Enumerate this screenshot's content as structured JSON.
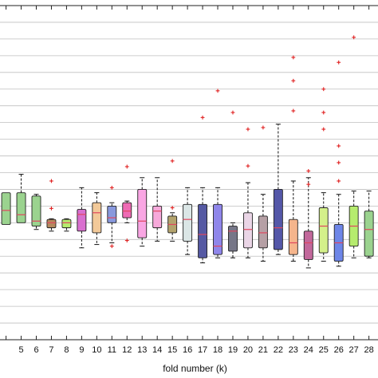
{
  "chart_data": {
    "type": "box",
    "xlabel": "fold number (k)",
    "ylabel": "",
    "title": "",
    "x_range": [
      3.6,
      28.6
    ],
    "ylim": [
      0,
      100
    ],
    "grid": "horizontal",
    "categories": [
      "5",
      "6",
      "7",
      "8",
      "9",
      "10",
      "11",
      "12",
      "13",
      "14",
      "15",
      "16",
      "17",
      "18",
      "19",
      "20",
      "21",
      "22",
      "23",
      "24",
      "25",
      "26",
      "27",
      "28"
    ],
    "boxes": [
      {
        "k": 4,
        "q1": 34.5,
        "median": 38.7,
        "q3": 44.0,
        "low": null,
        "high": null,
        "outliers": [],
        "color": "#9bd38f"
      },
      {
        "k": 5,
        "q1": 35.0,
        "median": 37.4,
        "q3": 44.0,
        "low": null,
        "high": 49.5,
        "outliers": [],
        "color": "#9bd38f"
      },
      {
        "k": 6,
        "q1": 34.0,
        "median": 35.5,
        "q3": 43.0,
        "low": 33.0,
        "high": 43.5,
        "outliers": [],
        "color": "#9bd38f"
      },
      {
        "k": 7,
        "q1": 33.5,
        "median": 35.0,
        "q3": 36.0,
        "low": 32.5,
        "high": 36.2,
        "outliers": [
          47.5,
          39.3
        ],
        "color": "#b58a5f"
      },
      {
        "k": 8,
        "q1": 33.5,
        "median": 35.0,
        "q3": 36.0,
        "low": 32.5,
        "high": 36.2,
        "outliers": [],
        "color": "#b6ec6e"
      },
      {
        "k": 9,
        "q1": 32.5,
        "median": 37.5,
        "q3": 39.0,
        "low": 27.5,
        "high": 45.5,
        "outliers": [],
        "color": "#d96fcf"
      },
      {
        "k": 10,
        "q1": 32.0,
        "median": 38.0,
        "q3": 41.0,
        "low": 28.5,
        "high": 44.0,
        "outliers": [],
        "color": "#f2c999"
      },
      {
        "k": 11,
        "q1": 35.0,
        "median": 36.5,
        "q3": 40.0,
        "low": 29.0,
        "high": 41.0,
        "outliers": [
          28.0,
          45.5
        ],
        "color": "#8898dd"
      },
      {
        "k": 12,
        "q1": 36.5,
        "median": 38.5,
        "q3": 41.0,
        "low": 35.0,
        "high": 41.5,
        "outliers": [
          29.7,
          51.8
        ],
        "color": "#ee6bb4"
      },
      {
        "k": 13,
        "q1": 30.5,
        "median": 35.5,
        "q3": 45.0,
        "low": 28.0,
        "high": 48.5,
        "outliers": [],
        "color": "#f9a6e3"
      },
      {
        "k": 14,
        "q1": 33.5,
        "median": 38.5,
        "q3": 40.0,
        "low": 29.5,
        "high": 48.5,
        "outliers": [],
        "color": "#f7a9da"
      },
      {
        "k": 15,
        "q1": 32.0,
        "median": 34.5,
        "q3": 37.0,
        "low": 29.5,
        "high": 38.0,
        "outliers": [
          39.5,
          53.5
        ],
        "color": "#b3a36d"
      },
      {
        "k": 16,
        "q1": 29.5,
        "median": 36.0,
        "q3": 40.5,
        "low": 25.5,
        "high": 45.5,
        "outliers": [],
        "color": "#dbe6e6"
      },
      {
        "k": 17,
        "q1": 24.5,
        "median": 31.5,
        "q3": 40.5,
        "low": 23.0,
        "high": 45.5,
        "outliers": [
          66.5
        ],
        "color": "#5559a3"
      },
      {
        "k": 18,
        "q1": 25.5,
        "median": 28.0,
        "q3": 40.5,
        "low": 24.5,
        "high": 45.5,
        "outliers": [
          74.5
        ],
        "color": "#8f86ea"
      },
      {
        "k": 19,
        "q1": 26.5,
        "median": 32.5,
        "q3": 34.0,
        "low": 24.5,
        "high": 35.0,
        "outliers": [
          68.0
        ],
        "color": "#777788"
      },
      {
        "k": 20,
        "q1": 27.5,
        "median": 33.0,
        "q3": 38.0,
        "low": 24.5,
        "high": 47.0,
        "outliers": [
          63.0,
          52.0
        ],
        "color": "#ead5e6"
      },
      {
        "k": 21,
        "q1": 27.5,
        "median": 32.0,
        "q3": 37.0,
        "low": 23.5,
        "high": 43.5,
        "outliers": [
          63.5
        ],
        "color": "#b6a0a5"
      },
      {
        "k": 22,
        "q1": 27.0,
        "median": 33.5,
        "q3": 45.0,
        "low": 25.5,
        "high": 64.5,
        "outliers": [],
        "color": "#5457a8"
      },
      {
        "k": 23,
        "q1": 25.5,
        "median": 29.0,
        "q3": 36.0,
        "low": 23.5,
        "high": 47.5,
        "outliers": [
          84.5,
          77.5,
          68.5
        ],
        "color": "#f5b58c"
      },
      {
        "k": 24,
        "q1": 24.0,
        "median": 29.0,
        "q3": 32.5,
        "low": 21.5,
        "high": 48.5,
        "outliers": [
          50.5,
          46.5
        ],
        "color": "#c2689b"
      },
      {
        "k": 25,
        "q1": 26.0,
        "median": 34.0,
        "q3": 39.5,
        "low": 23.5,
        "high": 44.0,
        "outliers": [
          75.0,
          68.0,
          63.0
        ],
        "color": "#d4f08a"
      },
      {
        "k": 26,
        "q1": 23.5,
        "median": 29.0,
        "q3": 34.5,
        "low": 22.0,
        "high": 43.5,
        "outliers": [
          83.0,
          58.0,
          53.0,
          47.5
        ],
        "color": "#6e86e8"
      },
      {
        "k": 27,
        "q1": 28.0,
        "median": 34.0,
        "q3": 40.0,
        "low": 24.5,
        "high": 44.5,
        "outliers": [
          90.5
        ],
        "color": "#b6ec6e"
      },
      {
        "k": 28,
        "q1": 25.0,
        "median": 33.0,
        "q3": 38.5,
        "low": 24.5,
        "high": 44.5,
        "outliers": [],
        "color": "#9bd38f"
      }
    ],
    "styles": {
      "box_edge": "#222222",
      "median": "#e0475f",
      "whisker": "#111111",
      "outlier": "#e02020",
      "grid": "#bfbfbf",
      "axis": "#222222"
    }
  }
}
